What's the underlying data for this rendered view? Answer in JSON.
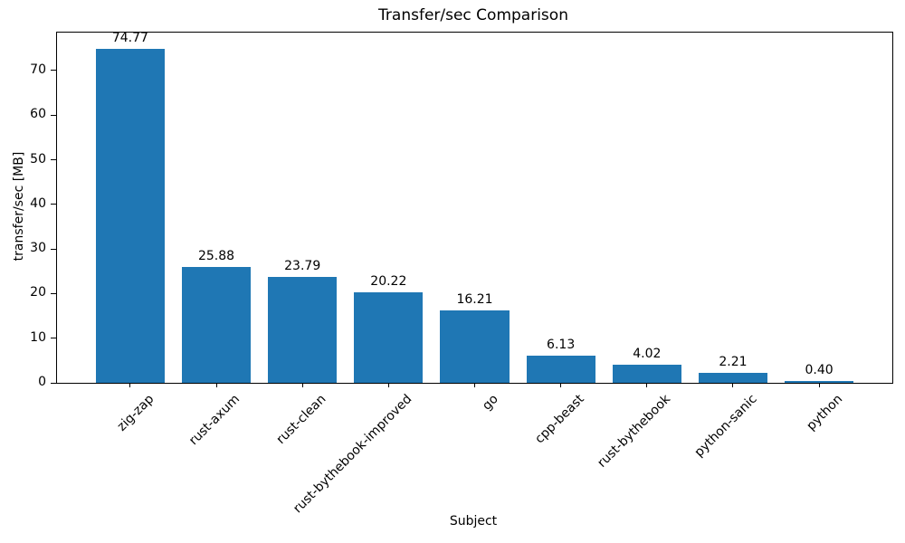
{
  "chart_data": {
    "type": "bar",
    "title": "Transfer/sec Comparison",
    "xlabel": "Subject",
    "ylabel": "transfer/sec [MB]",
    "categories": [
      "zig-zap",
      "rust-axum",
      "rust-clean",
      "rust-bythebook-improved",
      "go",
      "cpp-beast",
      "rust-bythebook",
      "python-sanic",
      "python"
    ],
    "values": [
      74.77,
      25.88,
      23.79,
      20.22,
      16.21,
      6.13,
      4.02,
      2.21,
      0.4
    ],
    "value_labels": [
      "74.77",
      "25.88",
      "23.79",
      "20.22",
      "16.21",
      "6.13",
      "4.02",
      "2.21",
      "0.40"
    ],
    "yticks": [
      0,
      10,
      20,
      30,
      40,
      50,
      60,
      70
    ],
    "ylim": [
      0,
      78.5
    ],
    "bar_color": "#1f77b4",
    "bar_width_ratio": 0.8,
    "x_tick_rotation_deg": 45,
    "grid": false,
    "legend_position": "none"
  }
}
